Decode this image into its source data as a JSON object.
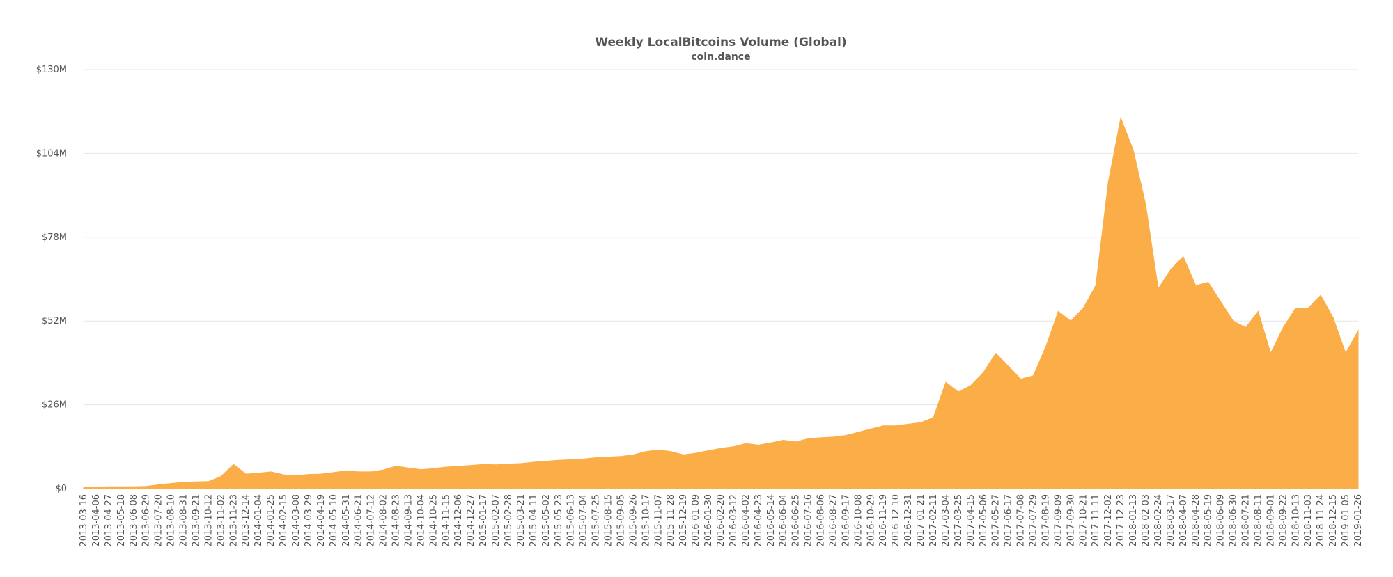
{
  "chart_data": {
    "type": "area",
    "title": "Weekly LocalBitcoins Volume (Global)",
    "subtitle": "coin.dance",
    "xlabel": "",
    "ylabel": "",
    "ylim": [
      0,
      130000000
    ],
    "grid": true,
    "legend": "none",
    "color": "#fbad47",
    "y_tick_values": [
      0,
      26000000,
      52000000,
      78000000,
      104000000,
      130000000
    ],
    "y_tick_labels": [
      "$0",
      "$26M",
      "$52M",
      "$78M",
      "$104M",
      "$130M"
    ],
    "x_tick_labels": [
      "2013-03-16",
      "2013-04-06",
      "2013-04-27",
      "2013-05-18",
      "2013-06-08",
      "2013-06-29",
      "2013-07-20",
      "2013-08-10",
      "2013-08-31",
      "2013-09-21",
      "2013-10-12",
      "2013-11-02",
      "2013-11-23",
      "2013-12-14",
      "2014-01-04",
      "2014-01-25",
      "2014-02-15",
      "2014-03-08",
      "2014-03-29",
      "2014-04-19",
      "2014-05-10",
      "2014-05-31",
      "2014-06-21",
      "2014-07-12",
      "2014-08-02",
      "2014-08-23",
      "2014-09-13",
      "2014-10-04",
      "2014-10-25",
      "2014-11-15",
      "2014-12-06",
      "2014-12-27",
      "2015-01-17",
      "2015-02-07",
      "2015-02-28",
      "2015-03-21",
      "2015-04-11",
      "2015-05-02",
      "2015-05-23",
      "2015-06-13",
      "2015-07-04",
      "2015-07-25",
      "2015-08-15",
      "2015-09-05",
      "2015-09-26",
      "2015-10-17",
      "2015-11-07",
      "2015-11-28",
      "2015-12-19",
      "2016-01-09",
      "2016-01-30",
      "2016-02-20",
      "2016-03-12",
      "2016-04-02",
      "2016-04-23",
      "2016-05-14",
      "2016-06-04",
      "2016-06-25",
      "2016-07-16",
      "2016-08-06",
      "2016-08-27",
      "2016-09-17",
      "2016-10-08",
      "2016-10-29",
      "2016-11-19",
      "2016-12-10",
      "2016-12-31",
      "2017-01-21",
      "2017-02-11",
      "2017-03-04",
      "2017-03-25",
      "2017-04-15",
      "2017-05-06",
      "2017-05-27",
      "2017-06-17",
      "2017-07-08",
      "2017-07-29",
      "2017-08-19",
      "2017-09-09",
      "2017-09-30",
      "2017-10-21",
      "2017-11-11",
      "2017-12-02",
      "2017-12-23",
      "2018-01-13",
      "2018-02-03",
      "2018-02-24",
      "2018-03-17",
      "2018-04-07",
      "2018-04-28",
      "2018-05-19",
      "2018-06-09",
      "2018-06-30",
      "2018-07-21",
      "2018-08-11",
      "2018-09-01",
      "2018-09-22",
      "2018-10-13",
      "2018-11-03",
      "2018-11-24",
      "2018-12-15",
      "2019-01-05",
      "2019-01-26"
    ],
    "x_tick_labels_2": [
      "2013-03-16",
      "2013-04-06",
      "2013-04-27",
      "2013-05-18",
      "2013-06-08",
      "2013-06-29",
      "2013-07-20",
      "2013-08-10",
      "2013-08-31",
      "2013-09-21",
      "2013-10-12",
      "2013-11-02",
      "2013-11-23",
      "2013-12-14",
      "2014-01-04",
      "2014-01-25",
      "2014-02-15",
      "2014-03-08",
      "2014-03-29",
      "2014-04-19",
      "2014-05-10",
      "2014-05-31",
      "2014-06-21",
      "2014-07-12",
      "2014-08-02",
      "2014-08-23",
      "2014-09-13",
      "2014-10-04",
      "2014-10-25",
      "2014-11-15",
      "2014-12-06",
      "2014-12-27",
      "2015-01-17",
      "2015-02-07",
      "2015-02-28",
      "2015-03-21",
      "2015-04-11",
      "2015-05-02",
      "2015-05-23",
      "2015-06-13",
      "2015-07-04",
      "2015-07-25",
      "2015-08-15",
      "2015-09-05",
      "2015-09-26",
      "2015-10-17",
      "2015-11-07",
      "2015-11-28",
      "2015-12-19",
      "2016-01-09",
      "2016-01-30",
      "2016-02-20",
      "2016-03-12",
      "2016-04-02",
      "2016-04-23",
      "2016-05-14",
      "2016-06-04",
      "2016-06-25",
      "2016-07-16",
      "2016-08-06",
      "2016-08-27",
      "2016-09-17",
      "2016-10-08",
      "2016-10-29",
      "2016-11-19",
      "2016-12-10",
      "2016-12-31",
      "2017-01-21",
      "2017-02-11",
      "2017-03-04",
      "2017-03-25",
      "2017-04-15",
      "2017-05-06",
      "2017-05-27",
      "2017-06-17",
      "2017-07-08",
      "2017-07-29",
      "2017-08-19",
      "2017-09-09",
      "2017-09-30",
      "2017-10-21",
      "2017-11-11",
      "2017-12-02",
      "2017-12-23",
      "2018-01-13",
      "2018-02-03",
      "2018-02-24",
      "2018-03-17",
      "2018-04-07",
      "2018-04-28",
      "2018-05-19",
      "2018-06-09",
      "2018-06-30",
      "2018-07-21",
      "2018-08-11",
      "2018-09-01",
      "2018-09-22",
      "2018-10-13",
      "2018-11-03",
      "2018-11-24",
      "2018-12-15",
      "2019-01-05",
      "2019-01-26"
    ],
    "x": [
      "2013-03-16",
      "2013-04-06",
      "2013-04-27",
      "2013-05-18",
      "2013-06-08",
      "2013-06-29",
      "2013-07-20",
      "2013-08-10",
      "2013-08-31",
      "2013-09-21",
      "2013-10-12",
      "2013-11-02",
      "2013-11-23",
      "2013-12-14",
      "2014-01-04",
      "2014-01-25",
      "2014-02-15",
      "2014-03-08",
      "2014-03-29",
      "2014-04-19",
      "2014-05-10",
      "2014-05-31",
      "2014-06-21",
      "2014-07-12",
      "2014-08-02",
      "2014-08-23",
      "2014-09-13",
      "2014-10-04",
      "2014-10-25",
      "2014-11-15",
      "2014-12-06",
      "2014-12-27",
      "2015-01-17",
      "2015-02-07",
      "2015-02-28",
      "2015-03-21",
      "2015-04-11",
      "2015-05-02",
      "2015-05-23",
      "2015-06-13",
      "2015-07-04",
      "2015-07-25",
      "2015-08-15",
      "2015-09-05",
      "2015-09-26",
      "2015-10-17",
      "2015-11-07",
      "2015-11-28",
      "2015-12-19",
      "2016-01-09",
      "2016-01-30",
      "2016-02-20",
      "2016-03-12",
      "2016-04-02",
      "2016-04-23",
      "2016-05-14",
      "2016-06-04",
      "2016-06-25",
      "2016-07-16",
      "2016-08-06",
      "2016-08-27",
      "2016-09-17",
      "2016-10-08",
      "2016-10-29",
      "2016-11-19",
      "2016-12-10",
      "2016-12-31",
      "2017-01-21",
      "2017-02-11",
      "2017-03-04",
      "2017-03-25",
      "2017-04-15",
      "2017-05-06",
      "2017-05-27",
      "2017-06-17",
      "2017-07-08",
      "2017-07-29",
      "2017-08-19",
      "2017-09-09",
      "2017-09-30",
      "2017-10-21",
      "2017-11-11",
      "2017-12-02",
      "2017-12-23",
      "2018-01-13",
      "2018-02-03",
      "2018-02-24",
      "2018-03-17",
      "2018-04-07",
      "2018-04-28",
      "2018-05-19",
      "2018-06-09",
      "2018-06-30",
      "2018-07-21",
      "2018-08-11",
      "2018-09-01",
      "2018-09-22",
      "2018-10-13",
      "2018-11-03",
      "2018-11-24",
      "2018-12-15",
      "2019-01-05",
      "2019-01-26"
    ],
    "series": [
      {
        "values": [
          0.3,
          0.5,
          0.6,
          0.6,
          0.6,
          0.7,
          1.2,
          1.6,
          2.0,
          2.1,
          2.2,
          3.8,
          7.5,
          4.5,
          4.8,
          5.2,
          4.3,
          4.0,
          4.4,
          4.5,
          5.0,
          5.5,
          5.2,
          5.2,
          5.8,
          7.0,
          6.4,
          5.9,
          6.2,
          6.7,
          6.9,
          7.2,
          7.5,
          7.4,
          7.6,
          7.8,
          8.2,
          8.5,
          8.8,
          9.0,
          9.2,
          9.6,
          9.8,
          10.0,
          10.5,
          11.5,
          12.0,
          11.5,
          10.5,
          11.0,
          11.8,
          12.5,
          13.0,
          14.0,
          13.5,
          14.2,
          15.0,
          14.5,
          15.5,
          15.8,
          16.0,
          16.5,
          17.5,
          18.5,
          19.5,
          19.5,
          20.0,
          20.5,
          22.0,
          33.0,
          30.0,
          32.0,
          36.0,
          42.0,
          38.0,
          34.0,
          35.0,
          44.0,
          55.0,
          52.0,
          56.0,
          63.0,
          95.0,
          115.0,
          105.0,
          88.0,
          62.0,
          68.0,
          72.0,
          63.0,
          64.0,
          58.0,
          52.0,
          50.0,
          55.0,
          42.0,
          50.0,
          56.0,
          56.0,
          60.0,
          53.0,
          42.0,
          49.0
        ]
      }
    ]
  }
}
